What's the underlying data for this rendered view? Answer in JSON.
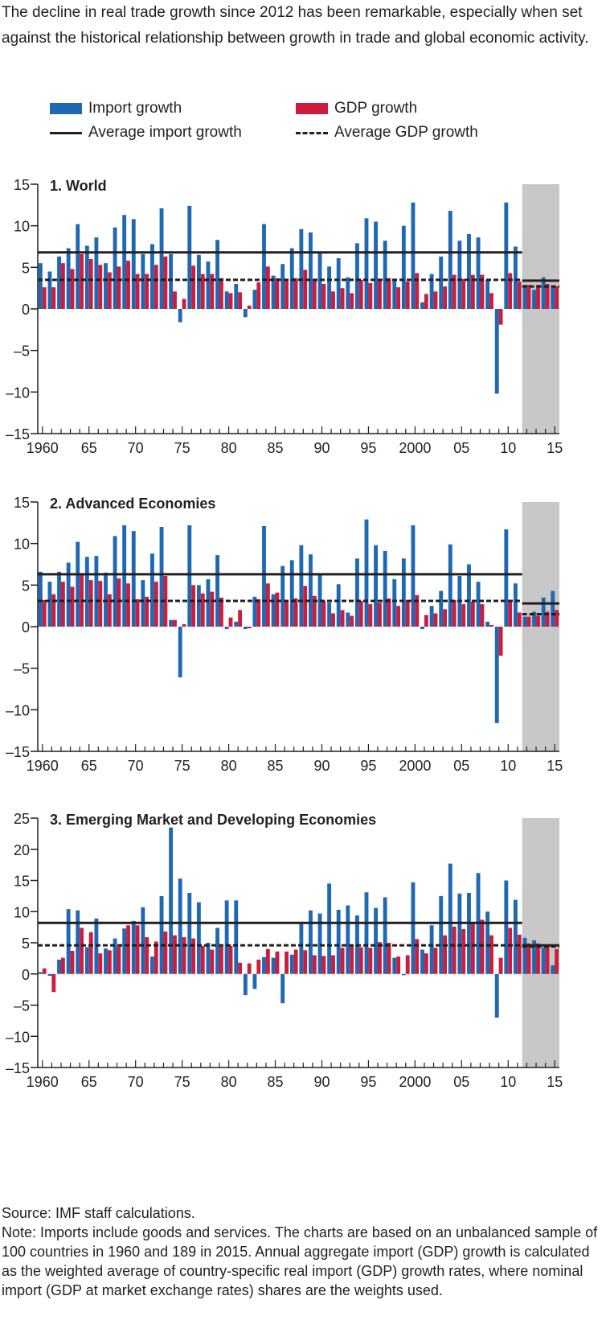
{
  "intro": "The decline in real trade growth since 2012 has been remarkable, especially when set against the historical relationship between growth in trade and global economic activity.",
  "legend": {
    "import_growth": "Import growth",
    "gdp_growth": "GDP growth",
    "avg_import": "Average import growth",
    "avg_gdp": "Average GDP growth"
  },
  "colors": {
    "import": "#1f68b4",
    "gdp": "#cc1e3c",
    "shade": "#c8c8c8",
    "ink": "#231f20"
  },
  "source": "Source: IMF staff calculations.",
  "note": "Note: Imports include goods and services. The charts are based on an unbalanced sample of 100 countries in 1960 and 189 in 2015. Annual aggregate import (GDP) growth is calculated as the weighted average of country-specific real import (GDP) growth rates, where nominal import (GDP at market exchange rates) shares are the weights used.",
  "chart_data": [
    {
      "type": "bar",
      "title": "1. World",
      "x": [
        1960,
        1961,
        1962,
        1963,
        1964,
        1965,
        1966,
        1967,
        1968,
        1969,
        1970,
        1971,
        1972,
        1973,
        1974,
        1975,
        1976,
        1977,
        1978,
        1979,
        1980,
        1981,
        1982,
        1983,
        1984,
        1985,
        1986,
        1987,
        1988,
        1989,
        1990,
        1991,
        1992,
        1993,
        1994,
        1995,
        1996,
        1997,
        1998,
        1999,
        2000,
        2001,
        2002,
        2003,
        2004,
        2005,
        2006,
        2007,
        2008,
        2009,
        2010,
        2011,
        2012,
        2013,
        2014,
        2015
      ],
      "x_tick_labels": [
        "1960",
        "65",
        "70",
        "75",
        "80",
        "85",
        "90",
        "95",
        "2000",
        "05",
        "10",
        "15"
      ],
      "x_tick_years": [
        1960,
        1965,
        1970,
        1975,
        1980,
        1985,
        1990,
        1995,
        2000,
        2005,
        2010,
        2015
      ],
      "ylim": [
        -15,
        15
      ],
      "y_ticks": [
        -15,
        -10,
        -5,
        0,
        5,
        10,
        15
      ],
      "y_tick_labels": [
        "–15",
        "–10",
        "–5",
        "0",
        "5",
        "10",
        "15"
      ],
      "shaded_from": 2012,
      "series": [
        {
          "name": "Import growth",
          "values": [
            5.5,
            4.5,
            6.3,
            7.3,
            10.2,
            7.6,
            8.6,
            5.5,
            9.8,
            11.3,
            10.8,
            6.6,
            7.8,
            12.1,
            6.6,
            -1.6,
            12.4,
            6.5,
            5.7,
            8.3,
            2.1,
            3.0,
            -1.0,
            2.3,
            10.2,
            4.0,
            5.4,
            7.3,
            9.6,
            9.2,
            6.8,
            5.1,
            6.1,
            3.8,
            7.9,
            10.9,
            10.5,
            8.2,
            3.5,
            10.0,
            12.8,
            0.8,
            4.2,
            6.3,
            11.8,
            8.2,
            9.0,
            8.6,
            3.5,
            -10.2,
            12.8,
            7.5,
            2.9,
            2.3,
            3.8,
            2.6
          ]
        },
        {
          "name": "GDP growth",
          "values": [
            2.6,
            2.6,
            5.5,
            4.8,
            6.6,
            6.0,
            5.3,
            4.4,
            5.1,
            5.8,
            4.2,
            4.2,
            5.3,
            6.3,
            2.1,
            1.2,
            5.2,
            4.2,
            4.2,
            3.7,
            1.9,
            2.0,
            0.4,
            3.2,
            5.1,
            3.7,
            3.5,
            3.7,
            4.7,
            3.5,
            3.0,
            2.1,
            2.5,
            1.9,
            3.5,
            3.1,
            3.5,
            3.7,
            2.6,
            3.3,
            4.3,
            1.8,
            2.1,
            2.7,
            4.1,
            3.6,
            4.1,
            4.1,
            1.9,
            -1.9,
            4.3,
            3.3,
            2.9,
            2.9,
            3.0,
            2.7
          ]
        }
      ],
      "averages": {
        "import_1960_2011": 6.8,
        "gdp_1960_2011": 3.5,
        "import_2012_2015": 3.4,
        "gdp_2012_2015": 2.7
      }
    },
    {
      "type": "bar",
      "title": "2. Advanced Economies",
      "x": [
        1960,
        1961,
        1962,
        1963,
        1964,
        1965,
        1966,
        1967,
        1968,
        1969,
        1970,
        1971,
        1972,
        1973,
        1974,
        1975,
        1976,
        1977,
        1978,
        1979,
        1980,
        1981,
        1982,
        1983,
        1984,
        1985,
        1986,
        1987,
        1988,
        1989,
        1990,
        1991,
        1992,
        1993,
        1994,
        1995,
        1996,
        1997,
        1998,
        1999,
        2000,
        2001,
        2002,
        2003,
        2004,
        2005,
        2006,
        2007,
        2008,
        2009,
        2010,
        2011,
        2012,
        2013,
        2014,
        2015
      ],
      "x_tick_labels": [
        "1960",
        "65",
        "70",
        "75",
        "80",
        "85",
        "90",
        "95",
        "2000",
        "05",
        "10",
        "15"
      ],
      "x_tick_years": [
        1960,
        1965,
        1970,
        1975,
        1980,
        1985,
        1990,
        1995,
        2000,
        2005,
        2010,
        2015
      ],
      "ylim": [
        -15,
        15
      ],
      "y_ticks": [
        -15,
        -10,
        -5,
        0,
        5,
        10,
        15
      ],
      "y_tick_labels": [
        "–15",
        "–10",
        "–5",
        "0",
        "5",
        "10",
        "15"
      ],
      "shaded_from": 2012,
      "series": [
        {
          "name": "Import growth",
          "values": [
            6.6,
            5.4,
            6.6,
            7.7,
            10.2,
            8.4,
            8.5,
            6.5,
            10.9,
            12.2,
            11.5,
            5.6,
            8.8,
            12.0,
            0.8,
            -6.1,
            12.2,
            5.0,
            5.7,
            8.6,
            -0.3,
            0.6,
            -0.3,
            3.6,
            12.1,
            3.9,
            7.3,
            8.0,
            9.8,
            8.7,
            6.2,
            2.9,
            5.1,
            1.7,
            8.2,
            12.9,
            9.8,
            9.1,
            5.7,
            8.2,
            12.2,
            -0.3,
            2.5,
            4.3,
            9.9,
            6.1,
            7.5,
            5.4,
            0.6,
            -11.6,
            11.7,
            5.2,
            1.2,
            1.8,
            3.5,
            4.3
          ]
        },
        {
          "name": "GDP growth",
          "values": [
            3.2,
            3.9,
            5.4,
            4.8,
            6.2,
            5.6,
            5.5,
            3.9,
            5.8,
            5.2,
            3.3,
            3.6,
            5.4,
            6.1,
            0.8,
            0.3,
            5.0,
            4.0,
            4.2,
            3.5,
            1.1,
            2.0,
            -0.2,
            3.3,
            5.2,
            4.1,
            3.1,
            3.4,
            4.9,
            3.7,
            3.1,
            1.6,
            2.0,
            1.3,
            3.1,
            2.7,
            2.9,
            3.4,
            2.5,
            3.2,
            3.8,
            1.4,
            1.6,
            2.1,
            3.2,
            2.7,
            3.0,
            2.7,
            0.2,
            -3.5,
            3.0,
            1.7,
            1.2,
            1.3,
            1.8,
            2.0
          ]
        }
      ],
      "averages": {
        "import_1960_2011": 6.3,
        "gdp_1960_2011": 3.1,
        "import_2012_2015": 2.8,
        "gdp_2012_2015": 1.5
      }
    },
    {
      "type": "bar",
      "title": "3. Emerging Market and Developing Economies",
      "x": [
        1960,
        1961,
        1962,
        1963,
        1964,
        1965,
        1966,
        1967,
        1968,
        1969,
        1970,
        1971,
        1972,
        1973,
        1974,
        1975,
        1976,
        1977,
        1978,
        1979,
        1980,
        1981,
        1982,
        1983,
        1984,
        1985,
        1986,
        1987,
        1988,
        1989,
        1990,
        1991,
        1992,
        1993,
        1994,
        1995,
        1996,
        1997,
        1998,
        1999,
        2000,
        2001,
        2002,
        2003,
        2004,
        2005,
        2006,
        2007,
        2008,
        2009,
        2010,
        2011,
        2012,
        2013,
        2014,
        2015
      ],
      "x_tick_labels": [
        "1960",
        "65",
        "70",
        "75",
        "80",
        "85",
        "90",
        "95",
        "2000",
        "05",
        "10",
        "15"
      ],
      "x_tick_years": [
        1960,
        1965,
        1970,
        1975,
        1980,
        1985,
        1990,
        1995,
        2000,
        2005,
        2010,
        2015
      ],
      "ylim": [
        -15,
        25
      ],
      "y_ticks": [
        -15,
        -10,
        -5,
        0,
        5,
        10,
        15,
        20,
        25
      ],
      "y_tick_labels": [
        "–15",
        "–10",
        "–5",
        "0",
        "5",
        "10",
        "15",
        "20",
        "25"
      ],
      "shaded_from": 2012,
      "series": [
        {
          "name": "Import growth",
          "values": [
            0.3,
            -0.3,
            2.3,
            10.4,
            10.2,
            4.3,
            8.9,
            4.1,
            5.7,
            7.3,
            8.5,
            10.7,
            2.8,
            12.5,
            23.5,
            15.3,
            13.0,
            11.5,
            5.0,
            7.4,
            11.8,
            11.8,
            -3.4,
            -2.4,
            2.7,
            2.6,
            -4.7,
            3.1,
            8.0,
            10.2,
            9.7,
            14.5,
            10.3,
            11.0,
            9.4,
            13.1,
            10.6,
            12.3,
            2.6,
            -0.2,
            14.7,
            3.9,
            7.8,
            12.5,
            17.7,
            12.9,
            13.0,
            16.2,
            10.0,
            -7.0,
            15.0,
            11.9,
            5.8,
            5.4,
            4.2,
            1.4
          ]
        },
        {
          "name": "GDP growth",
          "values": [
            0.9,
            -2.9,
            2.6,
            3.7,
            7.4,
            6.7,
            3.3,
            3.8,
            4.4,
            7.8,
            7.8,
            5.9,
            5.2,
            6.8,
            6.2,
            5.9,
            5.7,
            4.5,
            3.9,
            4.4,
            4.5,
            1.8,
            1.7,
            2.3,
            4.0,
            3.6,
            3.6,
            3.9,
            3.8,
            3.0,
            2.9,
            3.0,
            4.2,
            4.6,
            4.3,
            4.2,
            5.1,
            5.0,
            2.8,
            3.0,
            5.6,
            3.3,
            4.2,
            6.2,
            7.6,
            7.2,
            8.2,
            8.7,
            6.2,
            2.6,
            7.4,
            6.3,
            4.9,
            4.9,
            4.6,
            4.0
          ]
        }
      ],
      "averages": {
        "import_1960_2011": 8.2,
        "gdp_1960_2011": 4.6,
        "import_2012_2015": 4.6,
        "gdp_2012_2015": 4.4
      }
    }
  ]
}
